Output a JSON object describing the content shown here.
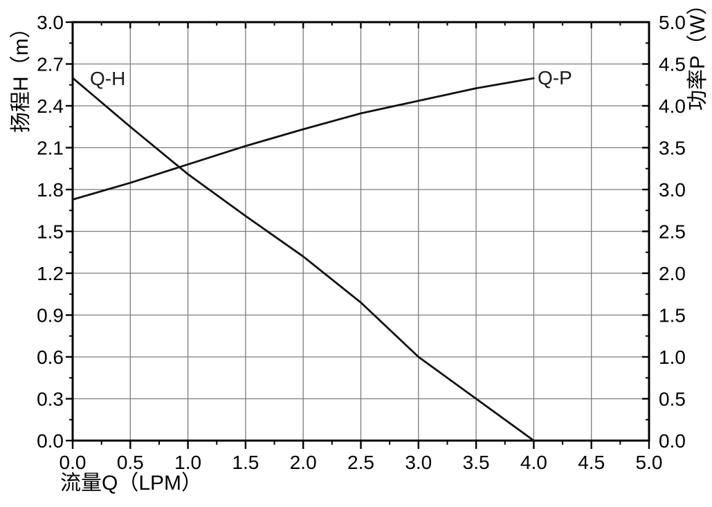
{
  "figure": {
    "background_color": "#ffffff",
    "frame_color": "#000000",
    "grid_color": "#7b7b7b",
    "curve_color": "#111111",
    "text_color": "#000000"
  },
  "chart_data": {
    "type": "line",
    "title": "",
    "grid": "major-both-axes",
    "legend_position": "inline-curve-labels",
    "x_axis": {
      "label": "流量Q（LPM）",
      "min": 0,
      "max": 5,
      "major_step": 0.5,
      "minor_step": 0.25,
      "tick_labels": [
        "0.0",
        "0.5",
        "1.0",
        "1.5",
        "2.0",
        "2.5",
        "3.0",
        "3.5",
        "4.0",
        "4.5",
        "5.0"
      ]
    },
    "y_left_axis": {
      "label": "扬程H（m）",
      "min": 0,
      "max": 3,
      "major_step": 0.3,
      "minor_step": 0.15,
      "tick_labels": [
        "0.0",
        "0.3",
        "0.6",
        "0.9",
        "1.2",
        "1.5",
        "1.8",
        "2.1",
        "2.4",
        "2.7",
        "3.0"
      ]
    },
    "y_right_axis": {
      "label": "功率P（W）",
      "min": 0,
      "max": 5,
      "major_step": 0.5,
      "minor_step": 0.25,
      "tick_labels": [
        "0.0",
        "0.5",
        "1.0",
        "1.5",
        "2.0",
        "2.5",
        "3.0",
        "3.5",
        "4.0",
        "4.5",
        "5.0"
      ]
    },
    "series": [
      {
        "name": "Q-H",
        "label": "Q-H",
        "axis": "left",
        "x": [
          0.0,
          0.5,
          1.0,
          1.5,
          2.0,
          2.5,
          3.0,
          3.5,
          4.0
        ],
        "y": [
          2.6,
          2.25,
          1.91,
          1.61,
          1.32,
          0.99,
          0.6,
          0.3,
          0.0
        ]
      },
      {
        "name": "Q-P",
        "label": "Q-P",
        "axis": "right",
        "x": [
          0.0,
          0.5,
          1.0,
          1.5,
          2.0,
          2.5,
          3.0,
          3.5,
          4.0
        ],
        "y": [
          2.88,
          3.08,
          3.3,
          3.52,
          3.72,
          3.91,
          4.06,
          4.21,
          4.33
        ]
      }
    ]
  }
}
